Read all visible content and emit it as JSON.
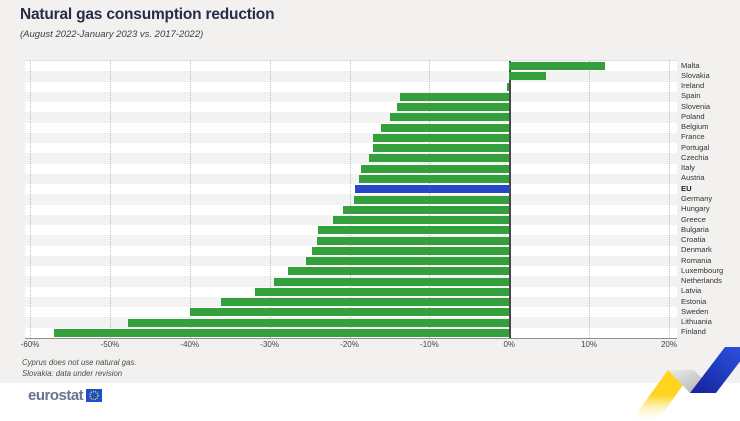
{
  "header": {
    "title": "Natural gas consumption reduction",
    "subtitle": "(August 2022-January 2023 vs. 2017-2022)"
  },
  "footnotes": [
    "Cyprus does not use natural gas.",
    "Slovakia: data under revision"
  ],
  "logo": {
    "text": "eurostat"
  },
  "chart_data": {
    "type": "bar",
    "orientation": "horizontal",
    "title": "Natural gas consumption reduction",
    "subtitle": "(August 2022-January 2023 vs. 2017-2022)",
    "unit": "%",
    "categories": [
      "Malta",
      "Slovakia",
      "Ireland",
      "Spain",
      "Slovenia",
      "Poland",
      "Belgium",
      "France",
      "Portugal",
      "Czechia",
      "Italy",
      "Austria",
      "EU",
      "Germany",
      "Hungary",
      "Greece",
      "Bulgaria",
      "Croatia",
      "Denmark",
      "Romania",
      "Luxembourg",
      "Netherlands",
      "Latvia",
      "Estonia",
      "Sweden",
      "Lithuania",
      "Finland"
    ],
    "values": [
      12.0,
      4.6,
      -0.3,
      -13.7,
      -14.1,
      -14.9,
      -16.1,
      -17.0,
      -17.1,
      -17.6,
      -18.5,
      -18.8,
      -19.3,
      -19.4,
      -20.8,
      -22.1,
      -23.9,
      -24.1,
      -24.7,
      -25.4,
      -27.7,
      -29.4,
      -31.8,
      -36.1,
      -40.0,
      -47.7,
      -57.0
    ],
    "highlight_category": "EU",
    "bar_color": "#33a03c",
    "eu_color": "#2847c8",
    "xlim": [
      -60,
      20
    ],
    "x_ticks": [
      -60,
      -50,
      -40,
      -30,
      -20,
      -10,
      0,
      10,
      20
    ],
    "x_tick_labels": [
      "-60%",
      "-50%",
      "-40%",
      "-30%",
      "-20%",
      "-10%",
      "0%",
      "10%",
      "20%"
    ],
    "grid": "vertical-dotted",
    "zero_line": true,
    "legend": "none",
    "stripe_colors": [
      "#ffffff",
      "#f3f3f3"
    ]
  }
}
